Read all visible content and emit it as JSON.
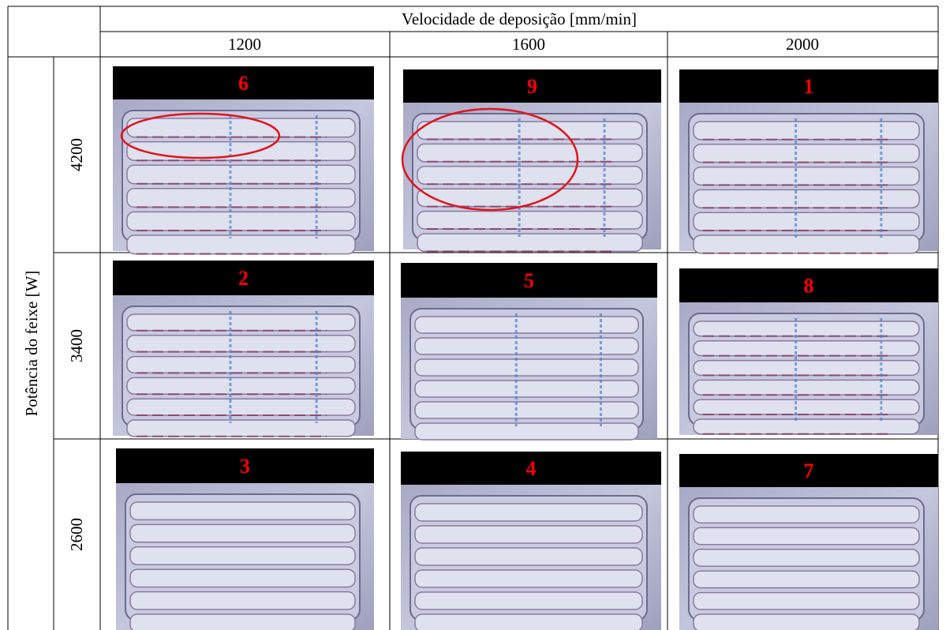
{
  "table": {
    "column_group_header": "Velocidade de deposição [mm/min]",
    "columns": [
      "1200",
      "1600",
      "2000"
    ],
    "row_group_header": "Potência do feixe [W]",
    "rows": [
      {
        "label": "4200",
        "samples": [
          "6",
          "9",
          "1"
        ]
      },
      {
        "label": "3400",
        "samples": [
          "2",
          "5",
          "8"
        ]
      },
      {
        "label": "2600",
        "samples": [
          "3",
          "4",
          "7"
        ]
      }
    ]
  }
}
